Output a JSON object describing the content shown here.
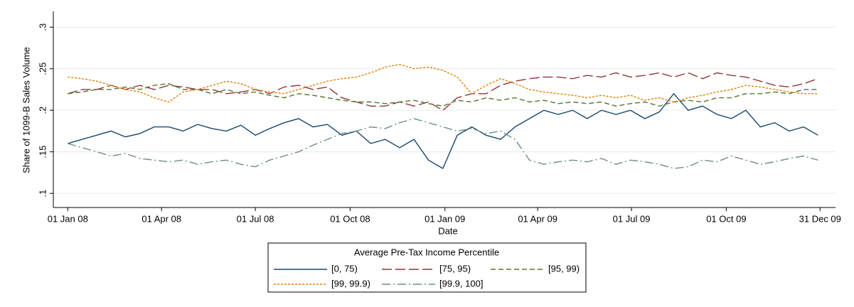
{
  "chart_data": {
    "type": "line",
    "y_label": "Share of 1099-B Sales Volume",
    "x_label": "Date",
    "legend_title": "Average Pre-Tax Income Percentile",
    "legend_position": "bottom",
    "grid": true,
    "xlim": [
      "2007-12-18",
      "2010-01-15"
    ],
    "xticks": [
      {
        "value": "2008-01-01",
        "label": "01 Jan 08"
      },
      {
        "value": "2008-04-01",
        "label": "01 Apr 08"
      },
      {
        "value": "2008-07-01",
        "label": "01 Jul 08"
      },
      {
        "value": "2008-10-01",
        "label": "01 Oct 08"
      },
      {
        "value": "2009-01-01",
        "label": "01 Jan 09"
      },
      {
        "value": "2009-04-01",
        "label": "01 Apr 09"
      },
      {
        "value": "2009-07-01",
        "label": "01 Jul 09"
      },
      {
        "value": "2009-10-01",
        "label": "01 Oct 09"
      },
      {
        "value": "2009-12-31",
        "label": "31 Dec 09"
      }
    ],
    "ylim": [
      0.083,
      0.319
    ],
    "yticks": [
      {
        "value": 0.1,
        "label": ".1"
      },
      {
        "value": 0.15,
        "label": ".15"
      },
      {
        "value": 0.2,
        "label": ".2"
      },
      {
        "value": 0.25,
        "label": ".25"
      },
      {
        "value": 0.3,
        "label": ".3"
      }
    ],
    "x": [
      "2008-01-01",
      "2008-01-15",
      "2008-01-29",
      "2008-02-12",
      "2008-02-26",
      "2008-03-11",
      "2008-03-25",
      "2008-04-08",
      "2008-04-22",
      "2008-05-06",
      "2008-05-20",
      "2008-06-03",
      "2008-06-17",
      "2008-07-01",
      "2008-07-15",
      "2008-07-29",
      "2008-08-12",
      "2008-08-26",
      "2008-09-09",
      "2008-09-23",
      "2008-10-07",
      "2008-10-21",
      "2008-11-04",
      "2008-11-18",
      "2008-12-02",
      "2008-12-16",
      "2008-12-30",
      "2009-01-13",
      "2009-01-27",
      "2009-02-10",
      "2009-02-24",
      "2009-03-10",
      "2009-03-24",
      "2009-04-07",
      "2009-04-21",
      "2009-05-05",
      "2009-05-19",
      "2009-06-02",
      "2009-06-16",
      "2009-06-30",
      "2009-07-14",
      "2009-07-28",
      "2009-08-11",
      "2009-08-25",
      "2009-09-08",
      "2009-09-22",
      "2009-10-06",
      "2009-10-20",
      "2009-11-03",
      "2009-11-17",
      "2009-12-01",
      "2009-12-15",
      "2009-12-29"
    ],
    "series": [
      {
        "name": "[0, 75)",
        "color": "#1a476f",
        "dash": "solid",
        "values": [
          0.16,
          0.165,
          0.17,
          0.175,
          0.168,
          0.172,
          0.18,
          0.18,
          0.175,
          0.183,
          0.178,
          0.175,
          0.182,
          0.17,
          0.178,
          0.185,
          0.19,
          0.18,
          0.183,
          0.17,
          0.175,
          0.16,
          0.165,
          0.155,
          0.165,
          0.14,
          0.13,
          0.17,
          0.18,
          0.17,
          0.165,
          0.18,
          0.19,
          0.2,
          0.195,
          0.2,
          0.19,
          0.2,
          0.195,
          0.2,
          0.19,
          0.198,
          0.22,
          0.2,
          0.205,
          0.195,
          0.19,
          0.2,
          0.18,
          0.185,
          0.175,
          0.18,
          0.17
        ]
      },
      {
        "name": "[75, 95)",
        "color": "#90353b",
        "dash": "longdash",
        "values": [
          0.22,
          0.225,
          0.225,
          0.23,
          0.225,
          0.23,
          0.225,
          0.23,
          0.228,
          0.225,
          0.225,
          0.22,
          0.222,
          0.225,
          0.22,
          0.228,
          0.23,
          0.225,
          0.228,
          0.215,
          0.21,
          0.205,
          0.205,
          0.21,
          0.205,
          0.21,
          0.2,
          0.215,
          0.22,
          0.22,
          0.23,
          0.235,
          0.238,
          0.24,
          0.24,
          0.238,
          0.242,
          0.24,
          0.245,
          0.24,
          0.242,
          0.245,
          0.24,
          0.245,
          0.238,
          0.245,
          0.242,
          0.24,
          0.235,
          0.23,
          0.228,
          0.232,
          0.238
        ]
      },
      {
        "name": "[95, 99)",
        "color": "#55752f",
        "dash": "dash",
        "values": [
          0.22,
          0.222,
          0.225,
          0.225,
          0.228,
          0.225,
          0.23,
          0.232,
          0.225,
          0.225,
          0.22,
          0.225,
          0.22,
          0.222,
          0.218,
          0.215,
          0.22,
          0.218,
          0.215,
          0.212,
          0.21,
          0.21,
          0.208,
          0.21,
          0.212,
          0.208,
          0.205,
          0.212,
          0.21,
          0.215,
          0.212,
          0.215,
          0.21,
          0.212,
          0.208,
          0.21,
          0.208,
          0.21,
          0.205,
          0.208,
          0.21,
          0.205,
          0.21,
          0.212,
          0.21,
          0.215,
          0.215,
          0.22,
          0.22,
          0.222,
          0.22,
          0.225,
          0.225
        ]
      },
      {
        "name": "[99, 99.9)",
        "color": "#e37e00",
        "dash": "shortdash",
        "values": [
          0.24,
          0.238,
          0.235,
          0.23,
          0.225,
          0.222,
          0.215,
          0.21,
          0.222,
          0.225,
          0.23,
          0.235,
          0.232,
          0.225,
          0.222,
          0.22,
          0.225,
          0.23,
          0.235,
          0.238,
          0.24,
          0.245,
          0.252,
          0.255,
          0.25,
          0.252,
          0.248,
          0.24,
          0.22,
          0.23,
          0.238,
          0.232,
          0.225,
          0.222,
          0.22,
          0.218,
          0.215,
          0.218,
          0.215,
          0.218,
          0.212,
          0.215,
          0.21,
          0.215,
          0.218,
          0.222,
          0.225,
          0.23,
          0.228,
          0.225,
          0.222,
          0.22,
          0.22
        ]
      },
      {
        "name": "[99.9, 100]",
        "color": "#6e8e84",
        "dash": "longdash_dot",
        "values": [
          0.16,
          0.155,
          0.15,
          0.145,
          0.148,
          0.142,
          0.14,
          0.138,
          0.14,
          0.135,
          0.138,
          0.14,
          0.135,
          0.132,
          0.14,
          0.145,
          0.15,
          0.158,
          0.165,
          0.172,
          0.175,
          0.18,
          0.178,
          0.185,
          0.19,
          0.185,
          0.18,
          0.175,
          0.178,
          0.172,
          0.175,
          0.165,
          0.14,
          0.135,
          0.138,
          0.14,
          0.138,
          0.142,
          0.135,
          0.14,
          0.138,
          0.135,
          0.13,
          0.132,
          0.14,
          0.138,
          0.145,
          0.14,
          0.135,
          0.138,
          0.142,
          0.145,
          0.14
        ]
      }
    ]
  }
}
